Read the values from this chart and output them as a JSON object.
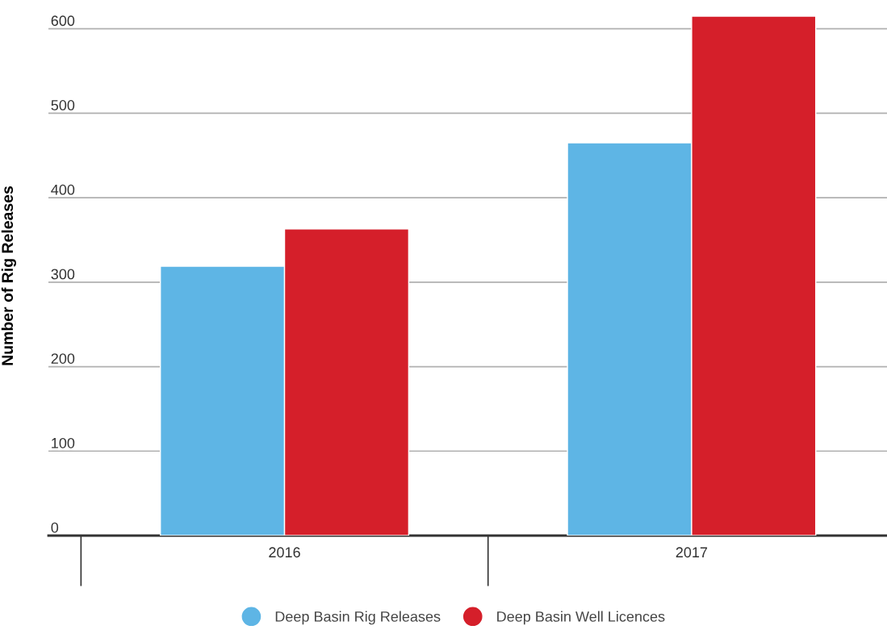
{
  "chart_data": {
    "type": "bar",
    "ylabel": "Number of Rig Releases",
    "categories": [
      "2016",
      "2017"
    ],
    "series": [
      {
        "name": "Deep Basin Rig Releases",
        "color": "#5eb5e5",
        "values": [
          319,
          465
        ]
      },
      {
        "name": "Deep Basin Well Licences",
        "color": "#d51f2a",
        "values": [
          363,
          615
        ]
      }
    ],
    "ylim": [
      0,
      615
    ],
    "yticks": [
      0,
      100,
      200,
      300,
      400,
      500,
      600
    ],
    "grid": "y",
    "legend": "bottom"
  }
}
